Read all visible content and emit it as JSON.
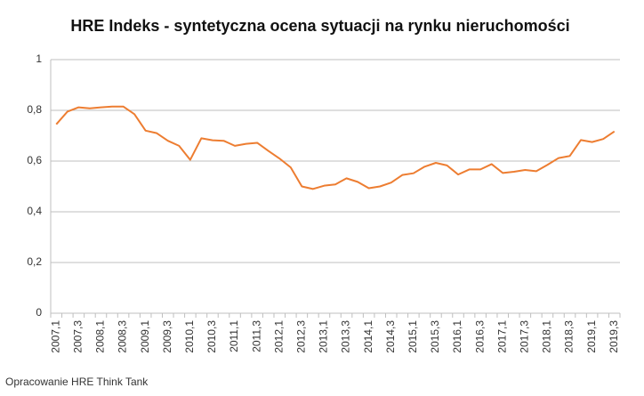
{
  "chart_data": {
    "type": "line",
    "title": "HRE Indeks - syntetyczna ocena sytuacji na rynku nieruchomości",
    "source": "Opracowanie HRE Think Tank",
    "categories": [
      "2007,1",
      null,
      "2007,3",
      null,
      "2008,1",
      null,
      "2008,3",
      null,
      "2009,1",
      null,
      "2009,3",
      null,
      "2010,1",
      null,
      "2010,3",
      null,
      "2011,1",
      null,
      "2011,3",
      null,
      "2012,1",
      null,
      "2012,3",
      null,
      "2013,1",
      null,
      "2013,3",
      null,
      "2014,1",
      null,
      "2014,3",
      null,
      "2015,1",
      null,
      "2015,3",
      null,
      "2016,1",
      null,
      "2016,3",
      null,
      "2017,1",
      null,
      "2017,3",
      null,
      "2018,1",
      null,
      "2018,3",
      null,
      "2019,1",
      null,
      "2019,3"
    ],
    "values": [
      0.745,
      0.795,
      0.812,
      0.808,
      0.812,
      0.815,
      0.815,
      0.785,
      0.72,
      0.71,
      0.68,
      0.66,
      0.605,
      0.69,
      0.682,
      0.68,
      0.66,
      0.668,
      0.672,
      0.64,
      0.61,
      0.575,
      0.5,
      0.49,
      0.503,
      0.508,
      0.532,
      0.518,
      0.493,
      0.5,
      0.515,
      0.545,
      0.552,
      0.578,
      0.593,
      0.583,
      0.547,
      0.567,
      0.567,
      0.588,
      0.553,
      0.558,
      0.565,
      0.56,
      0.585,
      0.612,
      0.62,
      0.683,
      0.675,
      0.687,
      0.717
    ],
    "color": "#ed7d31",
    "ylim": [
      0,
      1
    ],
    "yticks": [
      0,
      {
        "value": 0.2,
        "label": "0,2"
      },
      {
        "value": 0.4,
        "label": "0,4"
      },
      {
        "value": 0.6,
        "label": "0,6"
      },
      {
        "value": 0.8,
        "label": "0,8"
      },
      1
    ],
    "grid": true
  }
}
